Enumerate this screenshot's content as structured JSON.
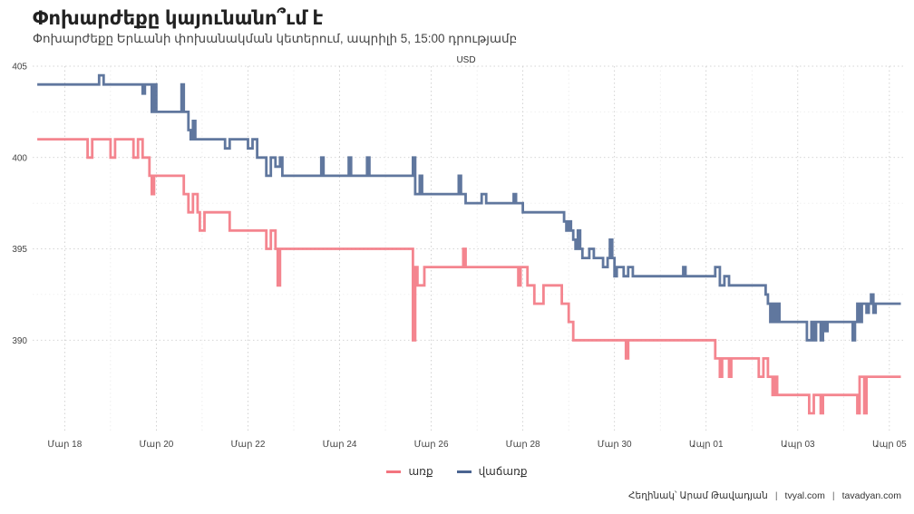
{
  "title": "Փոխարժեքը կայունանո՞ւմ է",
  "subtitle": "Փոխարժեքը Երևանի փոխանակման կետերում, ապրիլի 5, 15:00 դրությամբ",
  "caption": {
    "author": "Հեղինակ՝ Արամ Թավադյան",
    "site1": "tvyal.com",
    "site2": "tavadyan.com"
  },
  "colors": {
    "buy": "#f3747f",
    "sell": "#4a6491"
  },
  "chart_data": {
    "type": "line",
    "title": "Փոխարժեքը կայունանո՞ւմ է",
    "subtitle": "Փոխարժեքը Երևանի փոխանակման կետերում, ապրիլի 5, 15:00 դրությամբ",
    "facet_label": "USD",
    "xlabel": "",
    "ylabel": "",
    "ylim": [
      385,
      405
    ],
    "yticks": [
      390,
      395,
      400,
      405
    ],
    "xlim": [
      -0.7,
      18.3
    ],
    "xticks": [
      0,
      2,
      4,
      6,
      8,
      10,
      12,
      14,
      16,
      18
    ],
    "xticklabels": [
      "Մար 18",
      "Մար 20",
      "Մար 22",
      "Մար 24",
      "Մար 26",
      "Մար 28",
      "Մար 30",
      "Ապր 01",
      "Ապր 03",
      "Ապր 05"
    ],
    "x_unit": "days since Mar 18",
    "grid": true,
    "legend_position": "bottom",
    "series": [
      {
        "name": "առք",
        "color": "#f3747f",
        "points": [
          [
            -0.6,
            401
          ],
          [
            0.5,
            401
          ],
          [
            0.5,
            400
          ],
          [
            0.6,
            400
          ],
          [
            0.6,
            401
          ],
          [
            1.0,
            401
          ],
          [
            1.0,
            400
          ],
          [
            1.1,
            400
          ],
          [
            1.1,
            401
          ],
          [
            1.5,
            401
          ],
          [
            1.5,
            400
          ],
          [
            1.6,
            400
          ],
          [
            1.6,
            401
          ],
          [
            1.7,
            401
          ],
          [
            1.7,
            400
          ],
          [
            1.85,
            400
          ],
          [
            1.85,
            399
          ],
          [
            1.9,
            399
          ],
          [
            1.9,
            398
          ],
          [
            1.95,
            398
          ],
          [
            1.95,
            399
          ],
          [
            2.6,
            399
          ],
          [
            2.6,
            398
          ],
          [
            2.7,
            398
          ],
          [
            2.7,
            397
          ],
          [
            2.8,
            397
          ],
          [
            2.8,
            398
          ],
          [
            2.9,
            398
          ],
          [
            2.9,
            397
          ],
          [
            2.95,
            397
          ],
          [
            2.95,
            396
          ],
          [
            3.05,
            396
          ],
          [
            3.05,
            397
          ],
          [
            3.6,
            397
          ],
          [
            3.6,
            396
          ],
          [
            4.4,
            396
          ],
          [
            4.4,
            395
          ],
          [
            4.5,
            395
          ],
          [
            4.5,
            396
          ],
          [
            4.6,
            396
          ],
          [
            4.6,
            395
          ],
          [
            4.65,
            395
          ],
          [
            4.65,
            393
          ],
          [
            4.7,
            393
          ],
          [
            4.7,
            395
          ],
          [
            7.6,
            395
          ],
          [
            7.6,
            390
          ],
          [
            7.65,
            390
          ],
          [
            7.65,
            394
          ],
          [
            7.7,
            394
          ],
          [
            7.7,
            393
          ],
          [
            7.85,
            393
          ],
          [
            7.85,
            394
          ],
          [
            8.7,
            394
          ],
          [
            8.7,
            395
          ],
          [
            8.75,
            395
          ],
          [
            8.75,
            394
          ],
          [
            9.9,
            394
          ],
          [
            9.9,
            393
          ],
          [
            9.95,
            393
          ],
          [
            9.95,
            394
          ],
          [
            10.1,
            394
          ],
          [
            10.1,
            393
          ],
          [
            10.25,
            393
          ],
          [
            10.25,
            392
          ],
          [
            10.45,
            392
          ],
          [
            10.45,
            393
          ],
          [
            10.85,
            393
          ],
          [
            10.85,
            392
          ],
          [
            11.0,
            392
          ],
          [
            11.0,
            391
          ],
          [
            11.1,
            391
          ],
          [
            11.1,
            390
          ],
          [
            12.25,
            390
          ],
          [
            12.25,
            389
          ],
          [
            12.3,
            389
          ],
          [
            12.3,
            390
          ],
          [
            14.2,
            390
          ],
          [
            14.2,
            389
          ],
          [
            14.3,
            389
          ],
          [
            14.3,
            388
          ],
          [
            14.35,
            388
          ],
          [
            14.35,
            389
          ],
          [
            14.5,
            389
          ],
          [
            14.5,
            388
          ],
          [
            14.55,
            388
          ],
          [
            14.55,
            389
          ],
          [
            15.15,
            389
          ],
          [
            15.15,
            388
          ],
          [
            15.25,
            388
          ],
          [
            15.25,
            389
          ],
          [
            15.35,
            389
          ],
          [
            15.35,
            388
          ],
          [
            15.45,
            388
          ],
          [
            15.45,
            387
          ],
          [
            15.5,
            387
          ],
          [
            15.5,
            388
          ],
          [
            15.55,
            388
          ],
          [
            15.55,
            387
          ],
          [
            16.25,
            387
          ],
          [
            16.25,
            386
          ],
          [
            16.35,
            386
          ],
          [
            16.35,
            387
          ],
          [
            16.5,
            387
          ],
          [
            16.5,
            386
          ],
          [
            16.55,
            386
          ],
          [
            16.55,
            387
          ],
          [
            17.3,
            387
          ],
          [
            17.3,
            386
          ],
          [
            17.35,
            386
          ],
          [
            17.35,
            388
          ],
          [
            17.45,
            388
          ],
          [
            17.45,
            386
          ],
          [
            17.5,
            386
          ],
          [
            17.5,
            388
          ],
          [
            18.25,
            388
          ]
        ]
      },
      {
        "name": "վաճառք",
        "color": "#4a6491",
        "points": [
          [
            -0.6,
            404
          ],
          [
            0.75,
            404
          ],
          [
            0.75,
            404.5
          ],
          [
            0.85,
            404.5
          ],
          [
            0.85,
            404
          ],
          [
            1.7,
            404
          ],
          [
            1.7,
            403.5
          ],
          [
            1.75,
            403.5
          ],
          [
            1.75,
            404
          ],
          [
            1.9,
            404
          ],
          [
            1.9,
            402.5
          ],
          [
            1.95,
            402.5
          ],
          [
            1.95,
            404
          ],
          [
            2.0,
            404
          ],
          [
            2.0,
            402.5
          ],
          [
            2.55,
            402.5
          ],
          [
            2.55,
            404
          ],
          [
            2.6,
            404
          ],
          [
            2.6,
            402.5
          ],
          [
            2.7,
            402.5
          ],
          [
            2.7,
            401.5
          ],
          [
            2.75,
            401.5
          ],
          [
            2.75,
            401
          ],
          [
            2.8,
            401
          ],
          [
            2.8,
            402
          ],
          [
            2.85,
            402
          ],
          [
            2.85,
            401
          ],
          [
            3.5,
            401
          ],
          [
            3.5,
            400.5
          ],
          [
            3.6,
            400.5
          ],
          [
            3.6,
            401
          ],
          [
            4.0,
            401
          ],
          [
            4.0,
            400.5
          ],
          [
            4.1,
            400.5
          ],
          [
            4.1,
            401
          ],
          [
            4.2,
            401
          ],
          [
            4.2,
            400
          ],
          [
            4.4,
            400
          ],
          [
            4.4,
            399
          ],
          [
            4.5,
            399
          ],
          [
            4.5,
            400
          ],
          [
            4.6,
            400
          ],
          [
            4.6,
            399.5
          ],
          [
            4.7,
            399.5
          ],
          [
            4.7,
            400
          ],
          [
            4.75,
            400
          ],
          [
            4.75,
            399
          ],
          [
            5.6,
            399
          ],
          [
            5.6,
            400
          ],
          [
            5.65,
            400
          ],
          [
            5.65,
            399
          ],
          [
            6.2,
            399
          ],
          [
            6.2,
            400
          ],
          [
            6.25,
            400
          ],
          [
            6.25,
            399
          ],
          [
            6.6,
            399
          ],
          [
            6.6,
            400
          ],
          [
            6.65,
            400
          ],
          [
            6.65,
            399
          ],
          [
            7.6,
            399
          ],
          [
            7.6,
            400
          ],
          [
            7.65,
            400
          ],
          [
            7.65,
            398
          ],
          [
            7.75,
            398
          ],
          [
            7.75,
            399
          ],
          [
            7.8,
            399
          ],
          [
            7.8,
            398
          ],
          [
            8.6,
            398
          ],
          [
            8.6,
            399
          ],
          [
            8.65,
            399
          ],
          [
            8.65,
            398
          ],
          [
            8.75,
            398
          ],
          [
            8.75,
            397.5
          ],
          [
            9.1,
            397.5
          ],
          [
            9.1,
            398
          ],
          [
            9.2,
            398
          ],
          [
            9.2,
            397.5
          ],
          [
            9.8,
            397.5
          ],
          [
            9.8,
            398
          ],
          [
            9.85,
            398
          ],
          [
            9.85,
            397.5
          ],
          [
            10.0,
            397.5
          ],
          [
            10.0,
            397
          ],
          [
            10.9,
            397
          ],
          [
            10.9,
            396.5
          ],
          [
            10.95,
            396.5
          ],
          [
            10.95,
            396
          ],
          [
            11.0,
            396
          ],
          [
            11.0,
            396.5
          ],
          [
            11.05,
            396.5
          ],
          [
            11.05,
            396
          ],
          [
            11.1,
            396
          ],
          [
            11.1,
            395.5
          ],
          [
            11.15,
            395.5
          ],
          [
            11.15,
            395
          ],
          [
            11.2,
            395
          ],
          [
            11.2,
            396
          ],
          [
            11.25,
            396
          ],
          [
            11.25,
            395
          ],
          [
            11.3,
            395
          ],
          [
            11.3,
            394.5
          ],
          [
            11.45,
            394.5
          ],
          [
            11.45,
            395
          ],
          [
            11.55,
            395
          ],
          [
            11.55,
            394.5
          ],
          [
            11.75,
            394.5
          ],
          [
            11.75,
            394
          ],
          [
            11.85,
            394
          ],
          [
            11.85,
            394.5
          ],
          [
            11.9,
            394.5
          ],
          [
            11.9,
            395.5
          ],
          [
            11.95,
            395.5
          ],
          [
            11.95,
            394.5
          ],
          [
            12.0,
            394.5
          ],
          [
            12.0,
            393.5
          ],
          [
            12.05,
            393.5
          ],
          [
            12.05,
            394
          ],
          [
            12.2,
            394
          ],
          [
            12.2,
            393.5
          ],
          [
            12.3,
            393.5
          ],
          [
            12.3,
            394
          ],
          [
            12.4,
            394
          ],
          [
            12.4,
            393.5
          ],
          [
            13.5,
            393.5
          ],
          [
            13.5,
            394
          ],
          [
            13.55,
            394
          ],
          [
            13.55,
            393.5
          ],
          [
            14.2,
            393.5
          ],
          [
            14.2,
            394
          ],
          [
            14.3,
            394
          ],
          [
            14.3,
            393
          ],
          [
            14.4,
            393
          ],
          [
            14.4,
            393.5
          ],
          [
            14.5,
            393.5
          ],
          [
            14.5,
            393
          ],
          [
            15.3,
            393
          ],
          [
            15.3,
            392.5
          ],
          [
            15.35,
            392.5
          ],
          [
            15.35,
            392
          ],
          [
            15.4,
            392
          ],
          [
            15.4,
            391
          ],
          [
            15.45,
            391
          ],
          [
            15.45,
            392
          ],
          [
            15.5,
            392
          ],
          [
            15.5,
            391
          ],
          [
            15.55,
            391
          ],
          [
            15.55,
            392
          ],
          [
            15.6,
            392
          ],
          [
            15.6,
            391
          ],
          [
            16.2,
            391
          ],
          [
            16.2,
            390
          ],
          [
            16.3,
            390
          ],
          [
            16.3,
            391
          ],
          [
            16.35,
            391
          ],
          [
            16.35,
            390
          ],
          [
            16.4,
            390
          ],
          [
            16.4,
            391
          ],
          [
            16.5,
            391
          ],
          [
            16.5,
            390
          ],
          [
            16.55,
            390
          ],
          [
            16.55,
            391
          ],
          [
            16.6,
            391
          ],
          [
            16.6,
            390.5
          ],
          [
            16.65,
            390.5
          ],
          [
            16.65,
            391
          ],
          [
            17.2,
            391
          ],
          [
            17.2,
            390
          ],
          [
            17.25,
            390
          ],
          [
            17.25,
            391
          ],
          [
            17.3,
            391
          ],
          [
            17.3,
            392
          ],
          [
            17.35,
            392
          ],
          [
            17.35,
            391
          ],
          [
            17.4,
            391
          ],
          [
            17.4,
            392
          ],
          [
            17.5,
            392
          ],
          [
            17.5,
            391.5
          ],
          [
            17.55,
            391.5
          ],
          [
            17.55,
            392
          ],
          [
            17.6,
            392
          ],
          [
            17.6,
            392.5
          ],
          [
            17.65,
            392.5
          ],
          [
            17.65,
            391.5
          ],
          [
            17.7,
            391.5
          ],
          [
            17.7,
            392
          ],
          [
            18.25,
            392
          ]
        ]
      }
    ]
  }
}
